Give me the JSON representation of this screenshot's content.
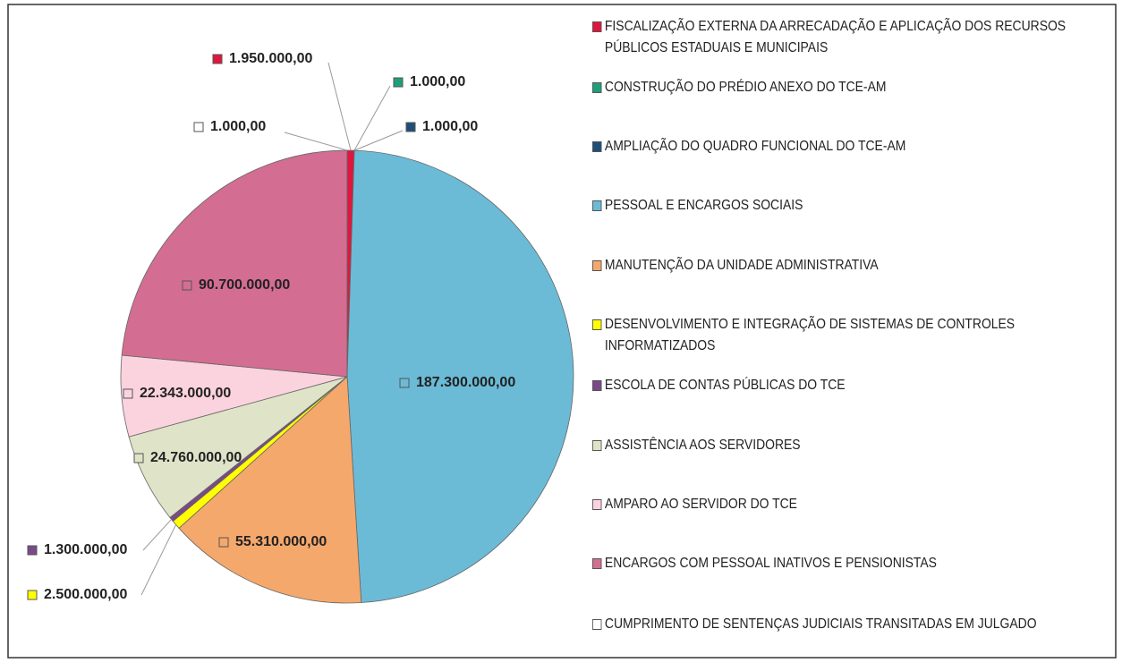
{
  "chart_data": {
    "type": "pie",
    "categories": [
      "FISCALIZAÇÃO EXTERNA DA ARRECADAÇÃO E APLICAÇÃO DOS RECURSOS PÚBLICOS ESTADUAIS E MUNICIPAIS",
      "CONSTRUÇÃO DO PRÉDIO ANEXO DO TCE-AM",
      "AMPLIAÇÃO DO QUADRO FUNCIONAL DO TCE-AM",
      "PESSOAL E ENCARGOS SOCIAIS",
      "MANUTENÇÃO DA UNIDADE ADMINISTRATIVA",
      "DESENVOLVIMENTO E INTEGRAÇÃO DE SISTEMAS DE CONTROLES INFORMATIZADOS",
      "ESCOLA DE CONTAS PÚBLICAS DO TCE",
      "ASSISTÊNCIA AOS SERVIDORES",
      "AMPARO AO SERVIDOR DO TCE",
      "ENCARGOS COM PESSOAL INATIVOS E PENSIONISTAS",
      "CUMPRIMENTO DE SENTENÇAS JUDICIAIS TRANSITADAS EM JULGADO"
    ],
    "values": [
      1950000,
      1000,
      1000,
      187300000,
      55310000,
      2500000,
      1300000,
      24760000,
      22343000,
      90700000,
      1000
    ],
    "value_labels": [
      "1.950.000,00",
      "1.000,00",
      "1.000,00",
      "187.300.000,00",
      "55.310.000,00",
      "2.500.000,00",
      "1.300.000,00",
      "24.760.000,00",
      "22.343.000,00",
      "90.700.000,00",
      "1.000,00"
    ],
    "colors": [
      "#e0163f",
      "#1f9e7a",
      "#1f4e79",
      "#6bbbd6",
      "#f5a86c",
      "#ffff00",
      "#7a4a88",
      "#dfe3c8",
      "#fbd3de",
      "#d46d92",
      "#ffffff"
    ],
    "legend": "right"
  }
}
